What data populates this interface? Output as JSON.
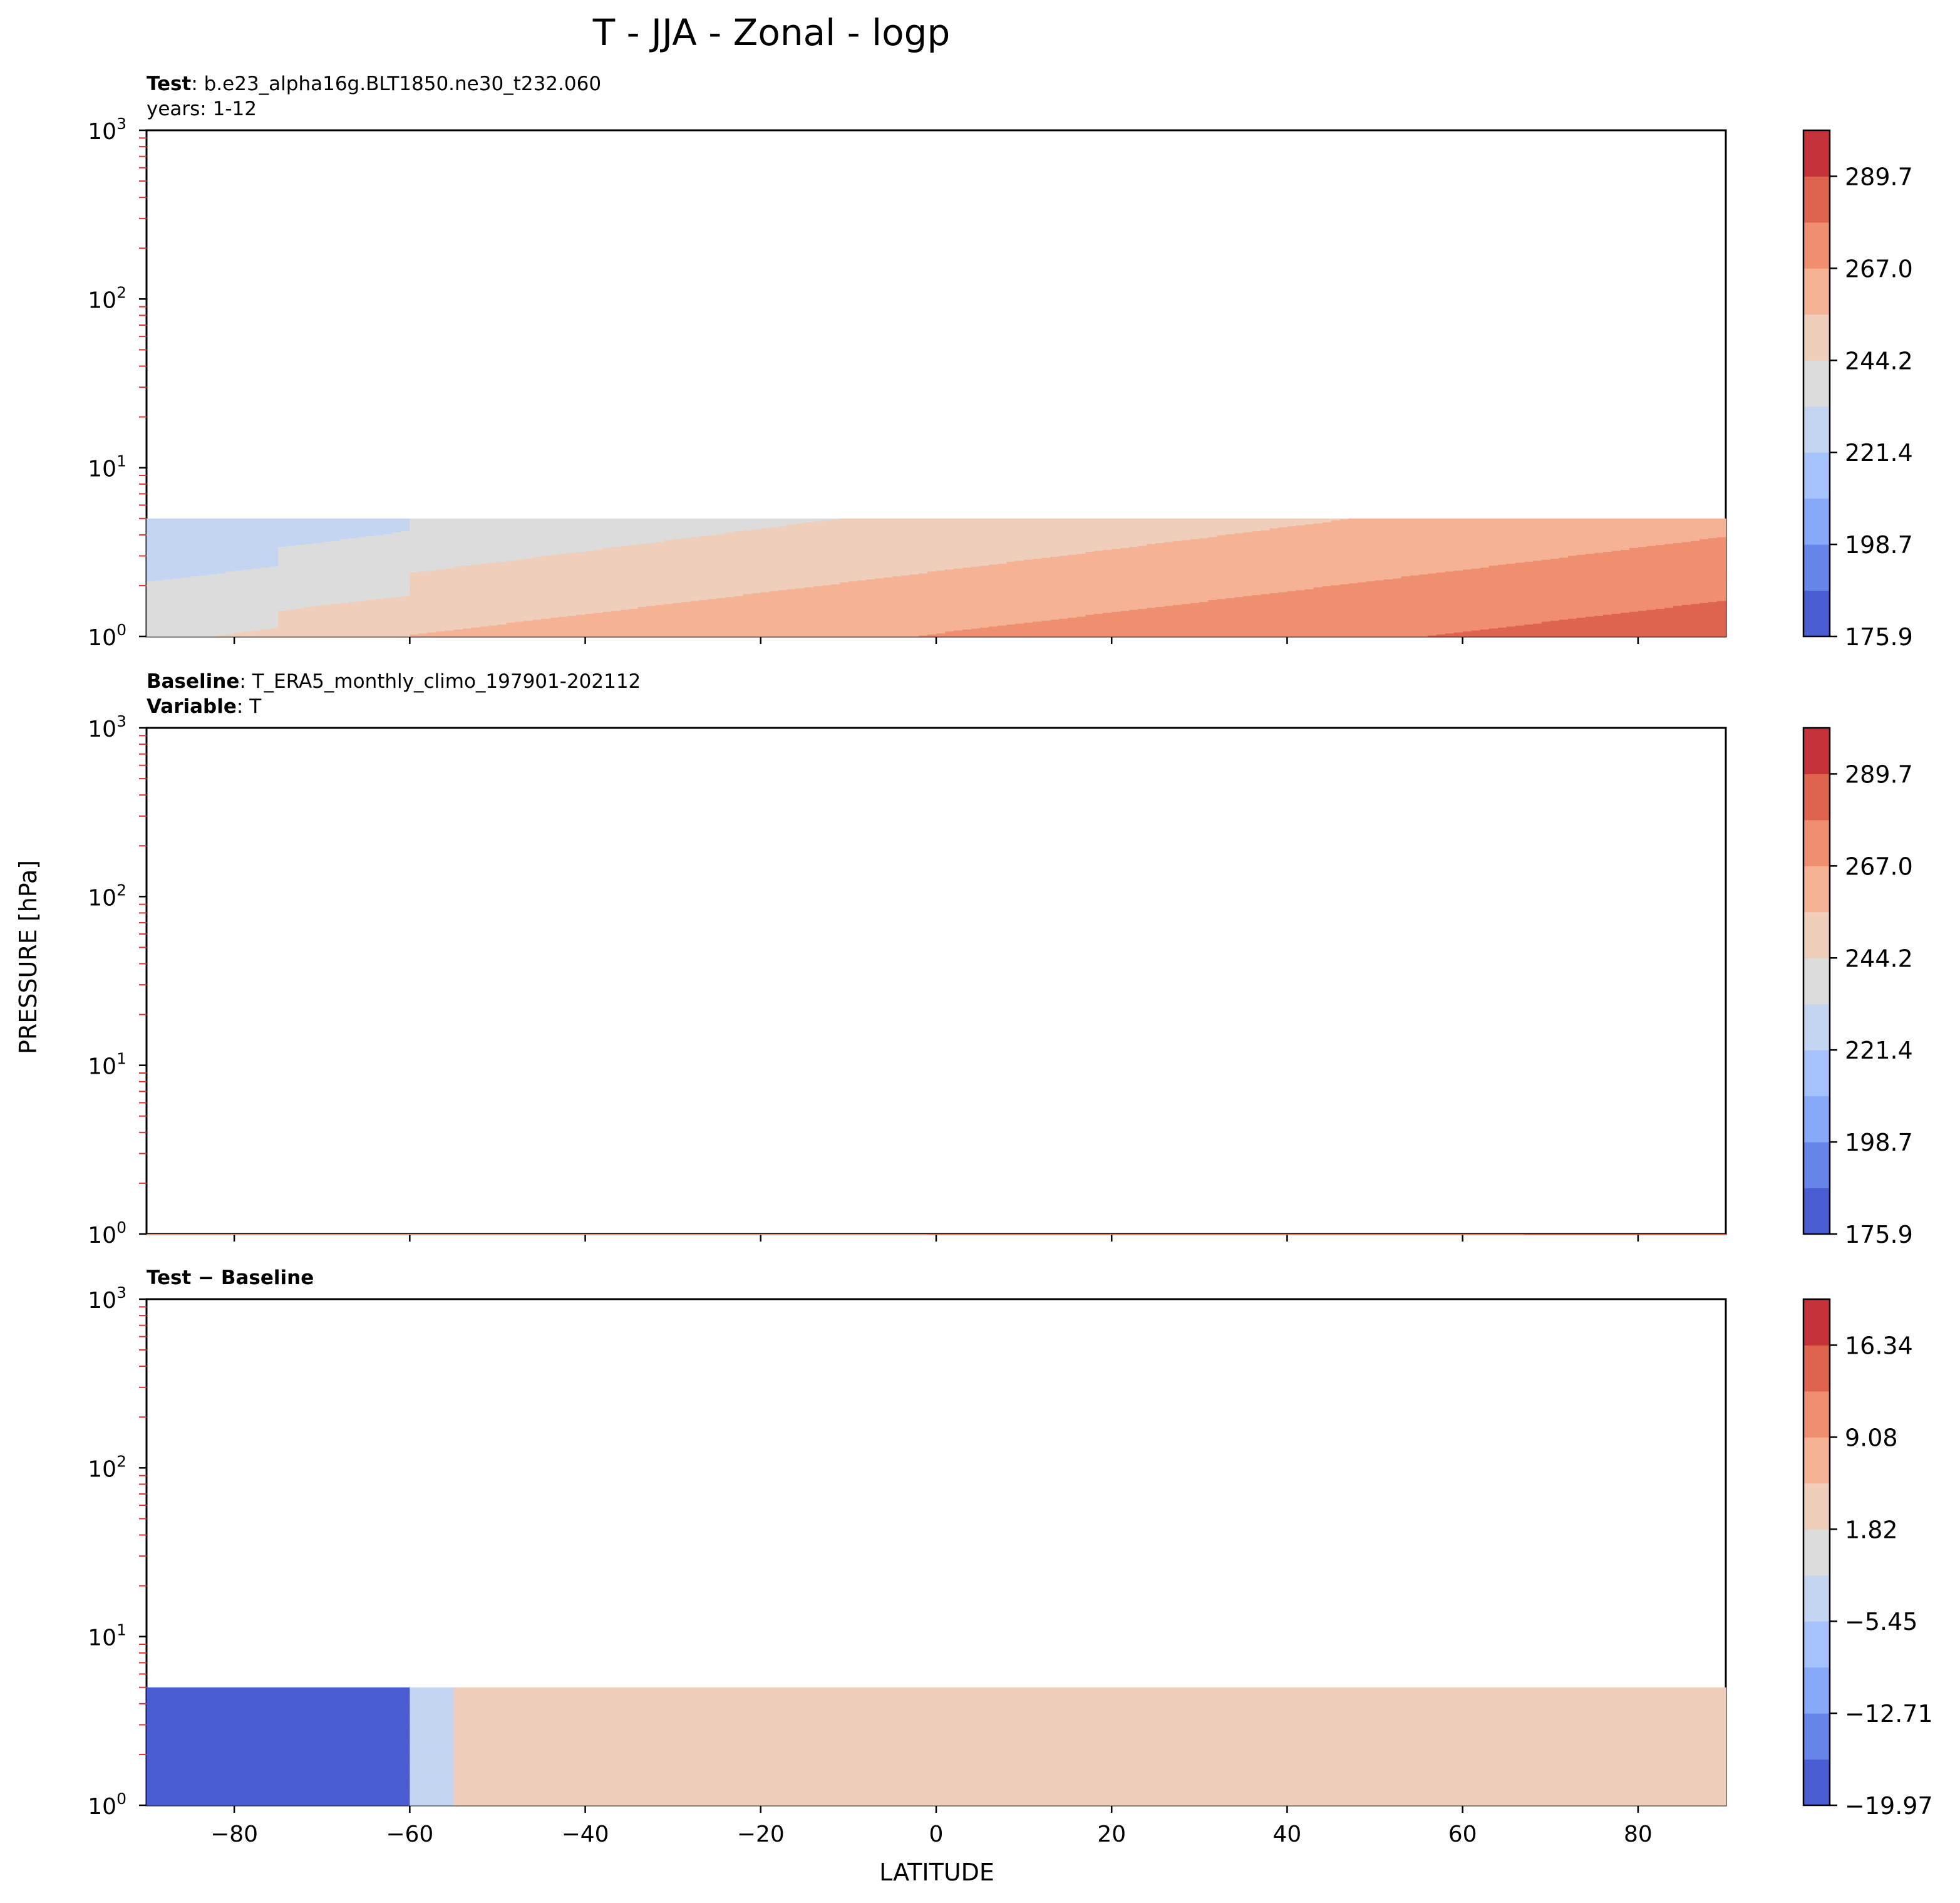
{
  "chart_data": {
    "type": "contour",
    "title": "T - JJA - Zonal - logp",
    "xlabel": "LATITUDE",
    "ylabel": "PRESSURE [hPa]",
    "xlim": [
      -90,
      90
    ],
    "ylim_hpa": [
      1000,
      1
    ],
    "yscale": "log",
    "x_ticks": [
      "−80",
      "−60",
      "−40",
      "−20",
      "0",
      "20",
      "40",
      "60",
      "80"
    ],
    "x_tick_values": [
      -80,
      -60,
      -40,
      -20,
      0,
      20,
      40,
      60,
      80
    ],
    "y_ticks": [
      {
        "base": "10",
        "exp": "0"
      },
      {
        "base": "10",
        "exp": "1"
      },
      {
        "base": "10",
        "exp": "2"
      },
      {
        "base": "10",
        "exp": "3"
      }
    ],
    "panels": [
      {
        "id": "test",
        "header": [
          {
            "bold": "Test",
            "text": ": b.e23_alpha16g.BLT1850.ne30_t232.060"
          },
          {
            "bold": "",
            "text": "years: 1-12"
          }
        ],
        "model_top_hpa": 5,
        "colorbar": {
          "ticks": [
            "175.9",
            "198.7",
            "221.4",
            "244.2",
            "267.0",
            "289.7"
          ],
          "colors": [
            "#4a5cd2",
            "#6586e8",
            "#88a9fa",
            "#a6c2fd",
            "#c4d5f2",
            "#dcdcdc",
            "#efcebb",
            "#f6b294",
            "#f08f70",
            "#de644e",
            "#c6323a"
          ]
        }
      },
      {
        "id": "baseline",
        "header": [
          {
            "bold": "Baseline",
            "text": ": T_ERA5_monthly_climo_197901-202112"
          },
          {
            "bold": "Variable",
            "text": ": T"
          }
        ],
        "model_top_hpa": 1,
        "colorbar": {
          "ticks": [
            "175.9",
            "198.7",
            "221.4",
            "244.2",
            "267.0",
            "289.7"
          ],
          "colors": [
            "#4a5cd2",
            "#6586e8",
            "#88a9fa",
            "#a6c2fd",
            "#c4d5f2",
            "#dcdcdc",
            "#efcebb",
            "#f6b294",
            "#f08f70",
            "#de644e",
            "#c6323a"
          ]
        }
      },
      {
        "id": "difference",
        "header": [
          {
            "bold": "Test − Baseline",
            "text": ""
          }
        ],
        "model_top_hpa": 5,
        "colorbar": {
          "ticks": [
            "−19.97",
            "−12.71",
            "−5.45",
            "1.82",
            "9.08",
            "16.34"
          ],
          "colors": [
            "#4a5cd2",
            "#6586e8",
            "#88a9fa",
            "#a6c2fd",
            "#c4d5f2",
            "#dcdcdc",
            "#efcebb",
            "#f6b294",
            "#f08f70",
            "#de644e",
            "#c6323a"
          ]
        }
      }
    ]
  }
}
